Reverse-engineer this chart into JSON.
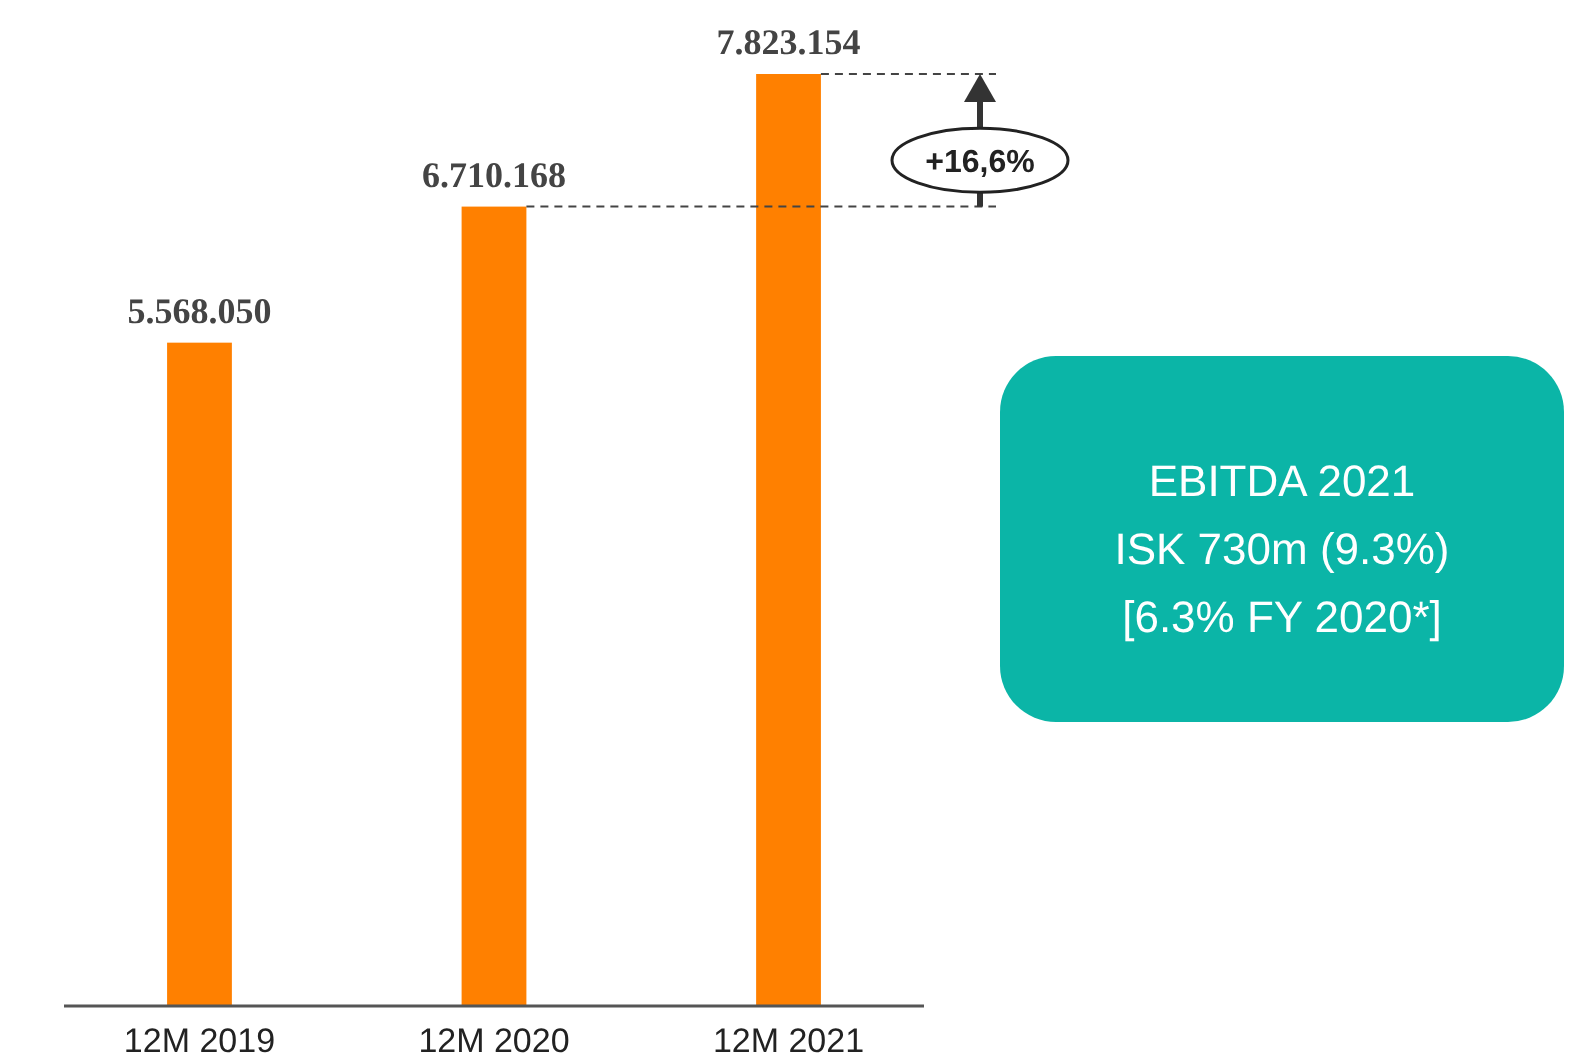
{
  "chart_data": {
    "type": "bar",
    "categories": [
      "12M 2019",
      "12M 2020",
      "12M 2021"
    ],
    "values": [
      5568050,
      6710168,
      7823154
    ],
    "value_labels": [
      "5.568.050",
      "6.710.168",
      "7.823.154"
    ],
    "color": "#ff8000",
    "annotations": [
      "+16,6%",
      "EBITDA 2021",
      "ISK 730m (9.3%)",
      "[6.3% FY 2020*]"
    ]
  }
}
